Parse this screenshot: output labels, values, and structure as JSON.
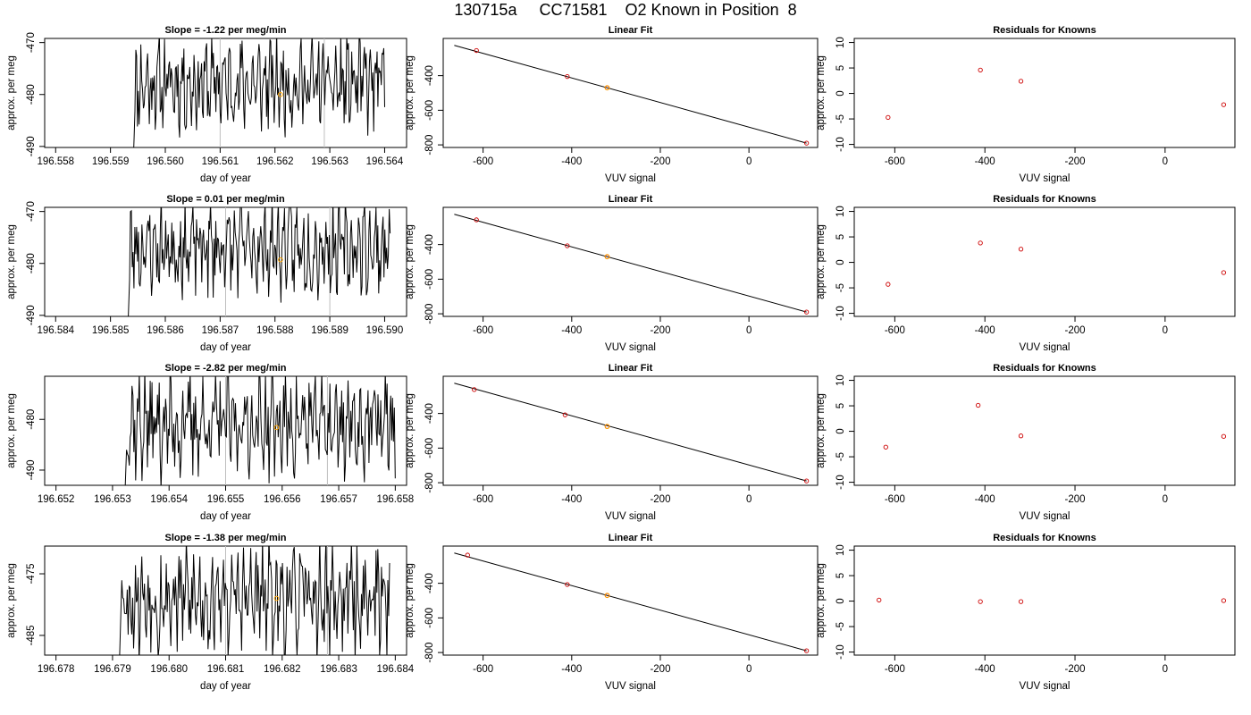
{
  "title": "130715a     CC71581    O2 Known in Position  8",
  "colors": {
    "trace": "#000000",
    "gray_line": "#bebebe",
    "highlight": "#ffa500",
    "points": "#cd0000"
  },
  "chart_data": [
    {
      "type": "line",
      "title": "Slope =  -1.22  per meg/min",
      "xlabel": "day of year",
      "ylabel": "approx. per meg",
      "xlim": [
        196.5578,
        196.5644
      ],
      "ylim": [
        -490.2,
        -469.2
      ],
      "xticks": [
        "196.558",
        "196.559",
        "196.560",
        "196.561",
        "196.562",
        "196.563",
        "196.564"
      ],
      "yticks": [
        "-470",
        "-480",
        "-490"
      ],
      "x_start": 196.5594,
      "x_end": 196.564,
      "seed": 11,
      "mean": -478,
      "amp": 6,
      "vlines": [
        196.561,
        196.5629
      ],
      "highlight": [
        196.5621,
        -480
      ]
    },
    {
      "type": "scatter",
      "title": "Linear Fit",
      "xlabel": "VUV signal",
      "ylabel": "approx. per meg",
      "xlim": [
        -690,
        155
      ],
      "ylim": [
        -815,
        -185
      ],
      "xticks": [
        "-600",
        "-400",
        "-200",
        "0"
      ],
      "yticks": [
        "-400",
        "-600",
        "-800"
      ],
      "line": [
        [
          -665,
          -225
        ],
        [
          130,
          -790
        ]
      ],
      "points": [
        [
          -615,
          -255
        ],
        [
          -410,
          -405
        ],
        [
          -320,
          -470
        ],
        [
          130,
          -790
        ]
      ],
      "highlight": [
        -320,
        -470
      ]
    },
    {
      "type": "scatter",
      "title": "Residuals for Knowns",
      "xlabel": "VUV signal",
      "ylabel": "approx. per meg",
      "xlim": [
        -690,
        155
      ],
      "ylim": [
        -10.6,
        10.8
      ],
      "xticks": [
        "-600",
        "-400",
        "-200",
        "0"
      ],
      "yticks": [
        "-10",
        "-5",
        "0",
        "5",
        "10"
      ],
      "points": [
        [
          -615,
          -4.7
        ],
        [
          -410,
          4.6
        ],
        [
          -320,
          2.4
        ],
        [
          130,
          -2.2
        ]
      ]
    },
    {
      "type": "line",
      "title": "Slope =  0.01  per meg/min",
      "xlabel": "day of year",
      "ylabel": "approx. per meg",
      "xlim": [
        196.5838,
        196.5904
      ],
      "ylim": [
        -490.2,
        -469.2
      ],
      "xticks": [
        "196.584",
        "196.585",
        "196.586",
        "196.587",
        "196.588",
        "196.589",
        "196.590"
      ],
      "yticks": [
        "-470",
        "-480",
        "-490"
      ],
      "x_start": 196.5853,
      "x_end": 196.5901,
      "seed": 23,
      "mean": -477,
      "amp": 6,
      "vlines": [
        196.5871,
        196.589
      ],
      "highlight": [
        196.5881,
        -479.3
      ]
    },
    {
      "type": "scatter",
      "title": "Linear Fit",
      "xlabel": "VUV signal",
      "ylabel": "approx. per meg",
      "xlim": [
        -690,
        155
      ],
      "ylim": [
        -815,
        -185
      ],
      "xticks": [
        "-600",
        "-400",
        "-200",
        "0"
      ],
      "yticks": [
        "-400",
        "-600",
        "-800"
      ],
      "line": [
        [
          -665,
          -225
        ],
        [
          130,
          -790
        ]
      ],
      "points": [
        [
          -615,
          -257
        ],
        [
          -410,
          -407
        ],
        [
          -320,
          -470
        ],
        [
          130,
          -790
        ]
      ],
      "highlight": [
        -320,
        -470
      ]
    },
    {
      "type": "scatter",
      "title": "Residuals for Knowns",
      "xlabel": "VUV signal",
      "ylabel": "approx. per meg",
      "xlim": [
        -690,
        155
      ],
      "ylim": [
        -10.6,
        10.8
      ],
      "xticks": [
        "-600",
        "-400",
        "-200",
        "0"
      ],
      "yticks": [
        "-10",
        "-5",
        "0",
        "5",
        "10"
      ],
      "points": [
        [
          -615,
          -4.3
        ],
        [
          -410,
          3.8
        ],
        [
          -320,
          2.6
        ],
        [
          130,
          -2.0
        ]
      ]
    },
    {
      "type": "line",
      "title": "Slope =  -2.82  per meg/min",
      "xlabel": "day of year",
      "ylabel": "approx. per meg",
      "xlim": [
        196.6518,
        196.6582
      ],
      "ylim": [
        -493,
        -471.5
      ],
      "xticks": [
        "196.652",
        "196.653",
        "196.654",
        "196.655",
        "196.656",
        "196.657",
        "196.658"
      ],
      "yticks": [
        "-480",
        "-490"
      ],
      "x_start": 196.6532,
      "x_end": 196.658,
      "seed": 37,
      "mean": -481,
      "amp": 7,
      "vlines": [
        196.655,
        196.6568
      ],
      "highlight": [
        196.6559,
        -481.6
      ]
    },
    {
      "type": "scatter",
      "title": "Linear Fit",
      "xlabel": "VUV signal",
      "ylabel": "approx. per meg",
      "xlim": [
        -690,
        155
      ],
      "ylim": [
        -815,
        -185
      ],
      "xticks": [
        "-600",
        "-400",
        "-200",
        "0"
      ],
      "yticks": [
        "-400",
        "-600",
        "-800"
      ],
      "line": [
        [
          -665,
          -225
        ],
        [
          130,
          -790
        ]
      ],
      "points": [
        [
          -620,
          -262
        ],
        [
          -415,
          -408
        ],
        [
          -320,
          -475
        ],
        [
          130,
          -790
        ]
      ],
      "highlight": [
        -320,
        -475
      ]
    },
    {
      "type": "scatter",
      "title": "Residuals for Knowns",
      "xlabel": "VUV signal",
      "ylabel": "approx. per meg",
      "xlim": [
        -690,
        155
      ],
      "ylim": [
        -10.6,
        10.8
      ],
      "xticks": [
        "-600",
        "-400",
        "-200",
        "0"
      ],
      "yticks": [
        "-10",
        "-5",
        "0",
        "5",
        "10"
      ],
      "points": [
        [
          -620,
          -3.1
        ],
        [
          -415,
          5.1
        ],
        [
          -320,
          -0.9
        ],
        [
          130,
          -1.0
        ]
      ]
    },
    {
      "type": "line",
      "title": "Slope =  -1.38  per meg/min",
      "xlabel": "day of year",
      "ylabel": "approx. per meg",
      "xlim": [
        196.6778,
        196.6842
      ],
      "ylim": [
        -488.2,
        -470.5
      ],
      "xticks": [
        "196.678",
        "196.679",
        "196.680",
        "196.681",
        "196.682",
        "196.683",
        "196.684"
      ],
      "yticks": [
        "-475",
        "-485"
      ],
      "x_start": 196.6791,
      "x_end": 196.6839,
      "seed": 53,
      "mean": -479,
      "amp": 6,
      "vlines": [
        196.681,
        196.6828
      ],
      "highlight": [
        196.6819,
        -479
      ]
    },
    {
      "type": "scatter",
      "title": "Linear Fit",
      "xlabel": "VUV signal",
      "ylabel": "approx. per meg",
      "xlim": [
        -690,
        155
      ],
      "ylim": [
        -815,
        -185
      ],
      "xticks": [
        "-600",
        "-400",
        "-200",
        "0"
      ],
      "yticks": [
        "-400",
        "-600",
        "-800"
      ],
      "line": [
        [
          -665,
          -225
        ],
        [
          130,
          -790
        ]
      ],
      "points": [
        [
          -635,
          -237
        ],
        [
          -410,
          -407
        ],
        [
          -320,
          -470
        ],
        [
          130,
          -790
        ]
      ],
      "highlight": [
        -320,
        -470
      ]
    },
    {
      "type": "scatter",
      "title": "Residuals for Knowns",
      "xlabel": "VUV signal",
      "ylabel": "approx. per meg",
      "xlim": [
        -690,
        155
      ],
      "ylim": [
        -10.6,
        10.8
      ],
      "xticks": [
        "-600",
        "-400",
        "-200",
        "0"
      ],
      "yticks": [
        "-10",
        "-5",
        "0",
        "5",
        "10"
      ],
      "points": [
        [
          -635,
          0.2
        ],
        [
          -410,
          -0.1
        ],
        [
          -320,
          -0.1
        ],
        [
          130,
          0.1
        ]
      ]
    }
  ]
}
